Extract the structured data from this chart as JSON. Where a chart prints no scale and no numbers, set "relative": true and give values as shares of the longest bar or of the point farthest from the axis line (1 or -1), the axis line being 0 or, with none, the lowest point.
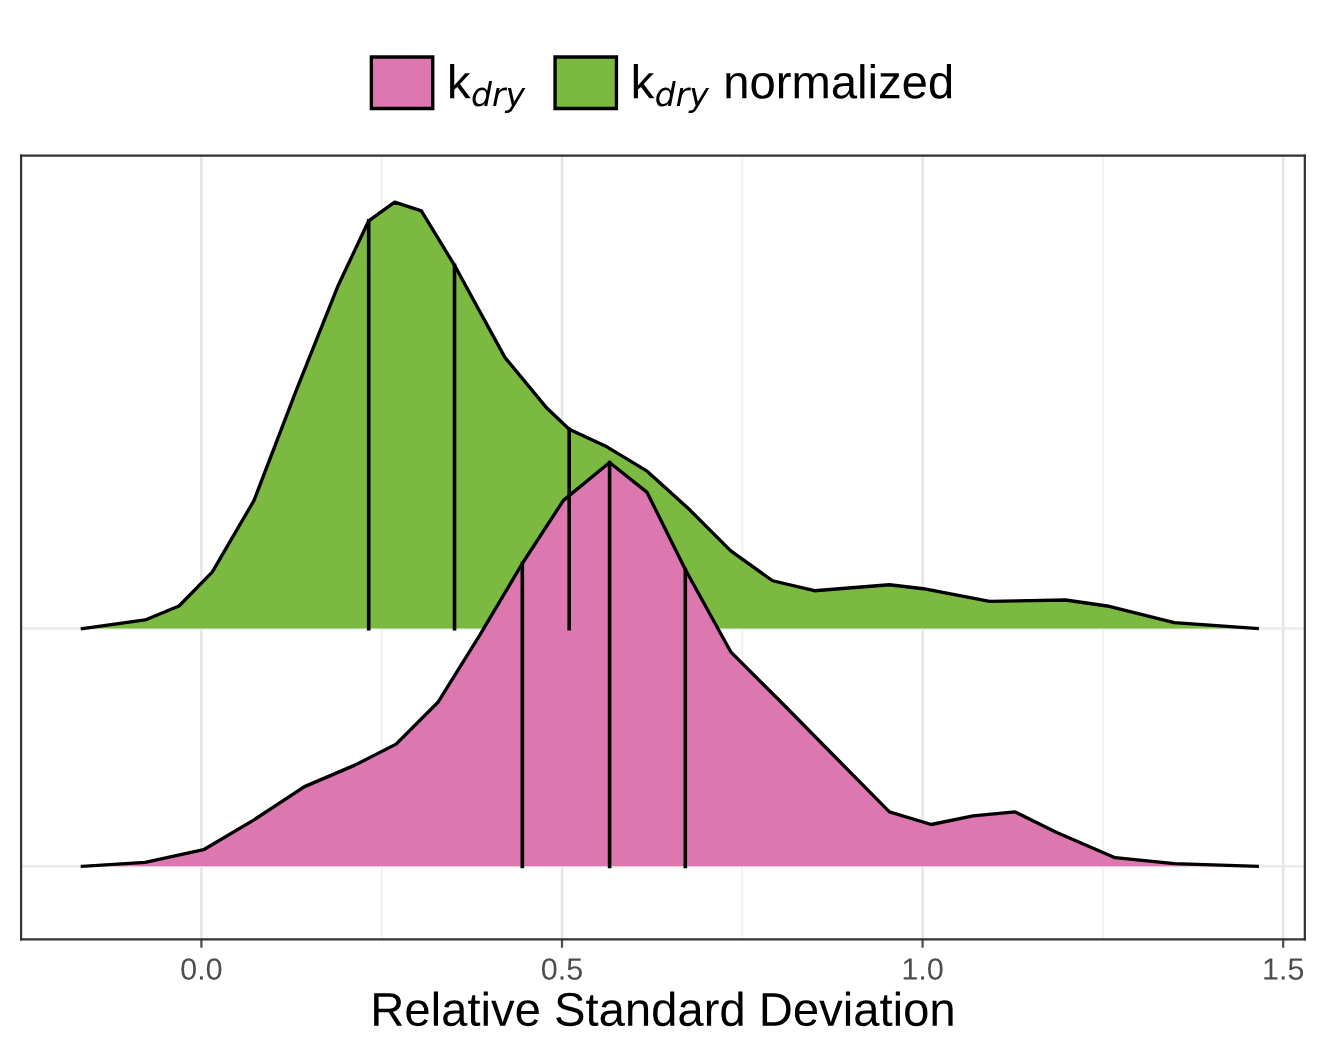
{
  "chart_data": {
    "type": "area",
    "relative": true,
    "xlabel": "Relative Standard Deviation",
    "xlim": [
      -0.25,
      1.53
    ],
    "xticks": [
      {
        "value": 0,
        "label": "0.0"
      },
      0.5,
      {
        "value": 1,
        "label": "1.0"
      },
      1.5
    ],
    "tick_labels": "x",
    "grid": "x",
    "ref_lines": [
      {
        "axis": "y",
        "value": 0,
        "color": "#ebebeb"
      },
      {
        "axis": "y",
        "value": 0.358,
        "color": "#ebebeb"
      }
    ],
    "legend": "top",
    "series": [
      {
        "name": "k$_{dry}$",
        "color": "#dd77b0",
        "x": [
          -0.165,
          -0.078,
          0.003,
          0.073,
          0.143,
          0.212,
          0.27,
          0.328,
          0.386,
          0.445,
          0.502,
          0.566,
          0.618,
          0.671,
          0.734,
          0.804,
          0.873,
          0.954,
          1.012,
          1.07,
          1.128,
          1.186,
          1.267,
          1.349,
          1.464
        ],
        "values": [
          0,
          0.006,
          0.025,
          0.07,
          0.12,
          0.152,
          0.184,
          0.247,
          0.348,
          0.456,
          0.551,
          0.608,
          0.563,
          0.447,
          0.323,
          0.247,
          0.171,
          0.082,
          0.063,
          0.076,
          0.082,
          0.051,
          0.013,
          0.004,
          0
        ]
      },
      {
        "name": "k$_{dry}$ normalized",
        "color": "#7cb940",
        "x": [
          -0.165,
          -0.078,
          -0.031,
          0.015,
          0.073,
          0.131,
          0.189,
          0.232,
          0.268,
          0.305,
          0.351,
          0.421,
          0.479,
          0.51,
          0.56,
          0.618,
          0.676,
          0.734,
          0.792,
          0.85,
          0.954,
          1.001,
          1.093,
          1.198,
          1.256,
          1.349,
          1.464
        ],
        "values": [
          0.358,
          0.371,
          0.392,
          0.443,
          0.551,
          0.715,
          0.873,
          0.972,
          1.0,
          0.987,
          0.905,
          0.766,
          0.69,
          0.658,
          0.633,
          0.595,
          0.538,
          0.475,
          0.43,
          0.415,
          0.424,
          0.418,
          0.399,
          0.401,
          0.392,
          0.367,
          0.358
        ]
      },
      {
        "type": "line",
        "color": "#000000",
        "x": [
          0.445,
          0.445
        ],
        "values": [
          0,
          0.456
        ]
      },
      {
        "type": "line",
        "color": "#000000",
        "x": [
          0.566,
          0.566
        ],
        "values": [
          0,
          0.608
        ]
      },
      {
        "type": "line",
        "color": "#000000",
        "x": [
          0.671,
          0.671
        ],
        "values": [
          0,
          0.447
        ]
      },
      {
        "type": "line",
        "color": "#000000",
        "x": [
          0.232,
          0.232
        ],
        "values": [
          0.358,
          0.972
        ]
      },
      {
        "type": "line",
        "color": "#000000",
        "x": [
          0.351,
          0.351
        ],
        "values": [
          0.358,
          0.905
        ]
      },
      {
        "type": "line",
        "color": "#000000",
        "x": [
          0.51,
          0.51
        ],
        "values": [
          0.358,
          0.658
        ]
      }
    ]
  }
}
